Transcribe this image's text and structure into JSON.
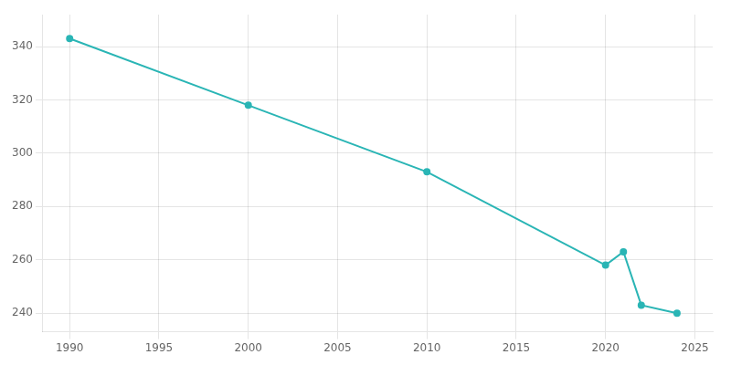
{
  "chart_data": {
    "type": "line",
    "x": [
      1990,
      2000,
      2010,
      2020,
      2021,
      2022,
      2024
    ],
    "values": [
      343,
      318,
      293,
      258,
      263,
      243,
      240
    ],
    "color": "#2ab5b5",
    "marker": "circle",
    "xlim": [
      1988.5,
      2026
    ],
    "ylim": [
      233,
      352
    ],
    "xticks": [
      1990,
      1995,
      2000,
      2005,
      2010,
      2015,
      2020,
      2025
    ],
    "yticks": [
      240,
      260,
      280,
      300,
      320,
      340
    ],
    "grid": true
  }
}
